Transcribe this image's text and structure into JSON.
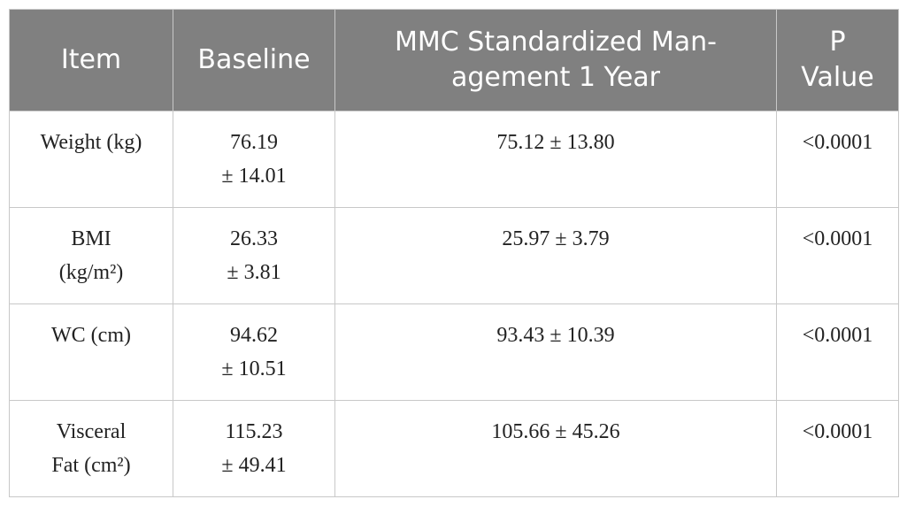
{
  "table": {
    "headers": [
      [
        "Item"
      ],
      [
        "Baseline"
      ],
      [
        "MMC Standardized Man-",
        "agement 1 Year"
      ],
      [
        "P",
        "Value"
      ]
    ],
    "rows": [
      [
        [
          "Weight (kg)"
        ],
        [
          "76.19",
          "± 14.01"
        ],
        [
          "75.12 ± 13.80"
        ],
        [
          "<0.0001"
        ]
      ],
      [
        [
          "BMI",
          "(kg/m²)"
        ],
        [
          "26.33",
          "± 3.81"
        ],
        [
          "25.97 ± 3.79"
        ],
        [
          "<0.0001"
        ]
      ],
      [
        [
          "WC (cm)"
        ],
        [
          "94.62",
          "± 10.51"
        ],
        [
          "93.43 ± 10.39"
        ],
        [
          "<0.0001"
        ]
      ],
      [
        [
          "Visceral",
          "Fat (cm²)"
        ],
        [
          "115.23",
          "± 49.41"
        ],
        [
          "105.66 ± 45.26"
        ],
        [
          "<0.0001"
        ]
      ]
    ]
  }
}
